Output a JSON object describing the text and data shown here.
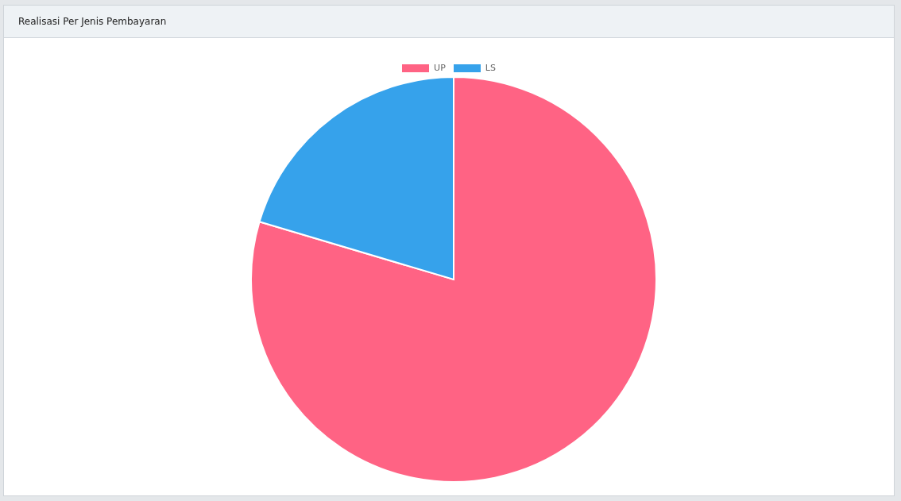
{
  "chart_data": {
    "type": "pie",
    "title": "Realisasi Per Jenis Pembayaran",
    "categories": [
      "UP",
      "LS"
    ],
    "values": [
      79.6,
      20.4
    ],
    "colors": [
      "#ff6384",
      "#36a2eb"
    ],
    "legend": "top"
  }
}
